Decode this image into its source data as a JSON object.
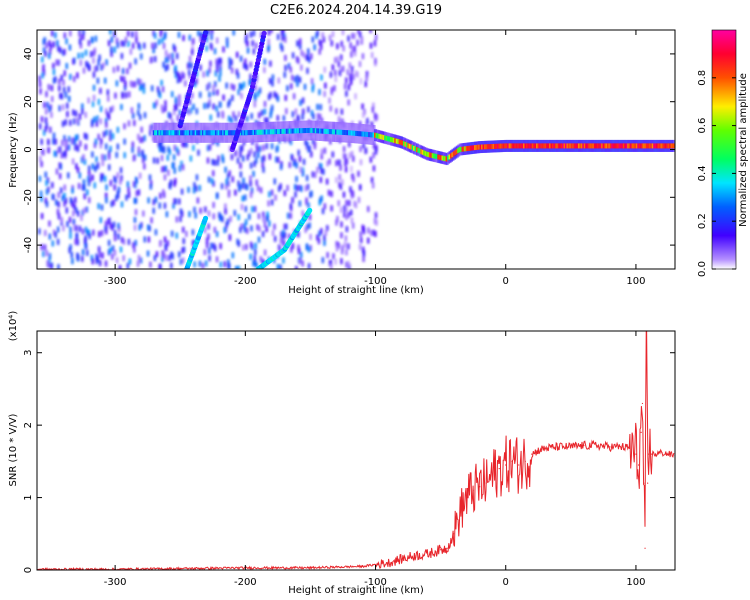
{
  "title": "C2E6.2024.204.14.39.G19",
  "colors": {
    "snr_line": "#e8252b",
    "spectrogram_low": "#6a00ff",
    "spectrogram_mid": "#00e5ff",
    "spectrogram_high": "#ff0000"
  },
  "colorbar": {
    "label": "Normalized spectral amplitude",
    "range": [
      0,
      1
    ],
    "ticks": [
      "0.0",
      "0.2",
      "0.4",
      "0.6",
      "0.8"
    ],
    "tick_values": [
      0.0,
      0.2,
      0.4,
      0.6,
      0.8
    ],
    "colormap": "rainbow (white-violet-blue-cyan-green-yellow-red-magenta)"
  },
  "chart_data": [
    {
      "type": "heatmap",
      "xlabel": "Height of straight line (km)",
      "ylabel": "Frequency (Hz)",
      "xlim": [
        -360,
        130
      ],
      "ylim": [
        -50,
        50
      ],
      "x_ticks": [
        -300,
        -200,
        -100,
        0,
        100
      ],
      "x_tick_labels": [
        "-300",
        "-200",
        "-100",
        "0",
        "100"
      ],
      "y_ticks": [
        -40,
        -20,
        0,
        20,
        40
      ],
      "y_tick_labels": [
        "-40",
        "-20",
        "0",
        "20",
        "40"
      ],
      "grid": false,
      "features": [
        {
          "name": "",
          "description": "scattered weak noise",
          "x_range": [
            -360,
            -100
          ],
          "y_range": [
            -50,
            50
          ],
          "amplitude": 0.15
        },
        {
          "name": "",
          "description": "main ridge",
          "points": [
            [
              -270,
              7
            ],
            [
              -200,
              7
            ],
            [
              -150,
              8
            ],
            [
              -120,
              7
            ],
            [
              -100,
              6
            ],
            [
              -80,
              3
            ],
            [
              -60,
              -2
            ],
            [
              -45,
              -4
            ],
            [
              -35,
              0
            ],
            [
              -20,
              1
            ],
            [
              0,
              1.5
            ],
            [
              50,
              1.5
            ],
            [
              100,
              1.5
            ],
            [
              130,
              1.5
            ]
          ],
          "amplitude": 0.9
        },
        {
          "name": "",
          "description": "diagonal track A",
          "points": [
            [
              -245,
              -50
            ],
            [
              -230,
              -28
            ]
          ],
          "amplitude": 0.35
        },
        {
          "name": "",
          "description": "diagonal track B",
          "points": [
            [
              -190,
              -50
            ],
            [
              -170,
              -42
            ],
            [
              -150,
              -25
            ]
          ],
          "amplitude": 0.35
        },
        {
          "name": "",
          "description": "diagonal track C",
          "points": [
            [
              -250,
              10
            ],
            [
              -240,
              30
            ],
            [
              -230,
              50
            ]
          ],
          "amplitude": 0.15
        },
        {
          "name": "",
          "description": "diagonal track D",
          "points": [
            [
              -210,
              0
            ],
            [
              -195,
              25
            ],
            [
              -185,
              50
            ]
          ],
          "amplitude": 0.15
        }
      ]
    },
    {
      "type": "line",
      "xlabel": "Height of straight line (km)",
      "ylabel": "SNR (10 * V/V)",
      "y_multiplier": "(x10⁴)",
      "xlim": [
        -360,
        130
      ],
      "ylim": [
        0,
        3.3
      ],
      "x_ticks": [
        -300,
        -200,
        -100,
        0,
        100
      ],
      "x_tick_labels": [
        "-300",
        "-200",
        "-100",
        "0",
        "100"
      ],
      "y_ticks": [
        0,
        1,
        2,
        3
      ],
      "y_tick_labels": [
        "0",
        "1",
        "2",
        "3"
      ],
      "grid": false,
      "series": [
        {
          "name": "",
          "x": [
            -360,
            -300,
            -250,
            -200,
            -150,
            -110,
            -90,
            -80,
            -70,
            -60,
            -50,
            -45,
            -40,
            -35,
            -30,
            -25,
            -20,
            -15,
            -10,
            -5,
            0,
            5,
            10,
            15,
            20,
            25,
            30,
            40,
            50,
            60,
            70,
            80,
            90,
            95,
            100,
            102,
            104,
            105,
            106,
            107,
            108,
            109,
            110,
            112,
            115,
            120,
            125,
            130
          ],
          "y": [
            0.01,
            0.01,
            0.02,
            0.03,
            0.03,
            0.05,
            0.1,
            0.15,
            0.2,
            0.22,
            0.28,
            0.3,
            0.5,
            0.8,
            1.0,
            1.1,
            1.15,
            1.2,
            1.3,
            1.4,
            1.45,
            1.5,
            1.45,
            1.5,
            1.6,
            1.65,
            1.68,
            1.7,
            1.7,
            1.72,
            1.72,
            1.7,
            1.7,
            1.68,
            1.6,
            1.45,
            1.9,
            2.3,
            1.2,
            0.3,
            3.3,
            1.2,
            1.6,
            1.6,
            1.6,
            1.62,
            1.6,
            1.58
          ]
        }
      ]
    }
  ]
}
